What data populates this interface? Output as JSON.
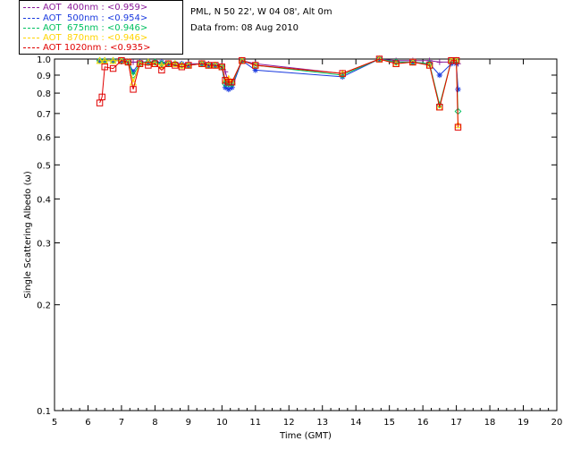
{
  "header": {
    "site": "PML, N 50 22', W 04 08', Alt 0m",
    "date_line": "Data from: 08 Aug 2010"
  },
  "legend": [
    {
      "text": "AOT  400nm : <0.959>",
      "color": "#8a1a9a"
    },
    {
      "text": "AOT  500nm : <0.954>",
      "color": "#1a3adf"
    },
    {
      "text": "AOT  675nm : <0.946>",
      "color": "#00c060"
    },
    {
      "text": "AOT  870nm : <0.946>",
      "color": "#ffd400"
    },
    {
      "text": "AOT 1020nm : <0.935>",
      "color": "#e00000"
    }
  ],
  "chart_data": {
    "type": "scatter",
    "title": "",
    "xlabel": "Time (GMT)",
    "ylabel": "Single Scattering Albedo (ω)",
    "xlim": [
      5,
      20
    ],
    "ylim": [
      0.1,
      1.0
    ],
    "yscale": "log",
    "x_ticks": [
      "5",
      "6",
      "7",
      "8",
      "9",
      "10",
      "11",
      "12",
      "13",
      "14",
      "15",
      "16",
      "17",
      "18",
      "19",
      "20"
    ],
    "y_ticks": [
      {
        "v": 1.0,
        "label": "1.0"
      },
      {
        "v": 0.9,
        "label": "0.9"
      },
      {
        "v": 0.8,
        "label": "0.8"
      },
      {
        "v": 0.7,
        "label": "0.7"
      },
      {
        "v": 0.6,
        "label": "0.6"
      },
      {
        "v": 0.5,
        "label": "0.5"
      },
      {
        "v": 0.4,
        "label": "0.4"
      },
      {
        "v": 0.3,
        "label": "0.3"
      },
      {
        "v": 0.2,
        "label": "0.2"
      },
      {
        "v": 0.1,
        "label": "0.1"
      }
    ],
    "series": [
      {
        "name": "AOT  400nm",
        "color": "#8a1a9a",
        "marker": "plus",
        "x": [
          6.35,
          6.5,
          6.75,
          7.0,
          7.2,
          7.35,
          7.55,
          7.8,
          8.0,
          8.2,
          8.4,
          8.6,
          8.8,
          9.0,
          9.4,
          9.6,
          9.8,
          10.0,
          10.1,
          10.2,
          10.3,
          10.6,
          11.0,
          13.6,
          14.7,
          15.2,
          15.7,
          16.2,
          16.5,
          16.85,
          17.0,
          17.05
        ],
        "y": [
          0.99,
          0.99,
          0.99,
          0.99,
          0.98,
          0.98,
          0.98,
          0.98,
          0.98,
          0.98,
          0.97,
          0.97,
          0.97,
          0.97,
          0.97,
          0.97,
          0.96,
          0.96,
          0.92,
          0.85,
          0.86,
          0.99,
          0.97,
          0.91,
          1.0,
          0.99,
          0.99,
          0.99,
          0.98,
          0.98,
          0.98,
          0.97
        ]
      },
      {
        "name": "AOT  500nm",
        "color": "#1a3adf",
        "marker": "star",
        "x": [
          6.35,
          6.5,
          6.75,
          7.0,
          7.2,
          7.35,
          7.55,
          7.8,
          8.0,
          8.2,
          8.4,
          8.6,
          8.8,
          9.0,
          9.4,
          9.6,
          9.8,
          10.0,
          10.1,
          10.2,
          10.3,
          10.6,
          11.0,
          13.6,
          14.7,
          15.2,
          15.7,
          16.2,
          16.5,
          16.85,
          17.0,
          17.05
        ],
        "y": [
          0.99,
          0.99,
          0.99,
          0.99,
          0.98,
          0.92,
          0.98,
          0.98,
          0.98,
          0.98,
          0.97,
          0.97,
          0.97,
          0.96,
          0.97,
          0.96,
          0.96,
          0.95,
          0.83,
          0.82,
          0.83,
          0.99,
          0.93,
          0.89,
          1.0,
          0.98,
          0.98,
          0.97,
          0.9,
          0.97,
          0.97,
          0.82
        ]
      },
      {
        "name": "AOT  675nm",
        "color": "#00c060",
        "marker": "diamond",
        "x": [
          6.35,
          6.5,
          6.75,
          7.0,
          7.2,
          7.35,
          7.55,
          7.8,
          8.0,
          8.2,
          8.4,
          8.6,
          8.8,
          9.0,
          9.4,
          9.6,
          9.8,
          10.0,
          10.1,
          10.2,
          10.3,
          10.6,
          11.0,
          13.6,
          14.7,
          15.2,
          15.7,
          16.2,
          16.5,
          16.85,
          17.0,
          17.05
        ],
        "y": [
          0.99,
          0.99,
          0.99,
          0.99,
          0.98,
          0.9,
          0.97,
          0.98,
          0.98,
          0.97,
          0.97,
          0.97,
          0.96,
          0.96,
          0.97,
          0.96,
          0.96,
          0.95,
          0.85,
          0.85,
          0.85,
          0.99,
          0.96,
          0.9,
          1.0,
          0.98,
          0.98,
          0.97,
          0.74,
          0.99,
          0.99,
          0.71
        ]
      },
      {
        "name": "AOT  870nm",
        "color": "#ffd400",
        "marker": "triangle",
        "x": [
          6.35,
          6.5,
          6.75,
          7.0,
          7.2,
          7.35,
          7.55,
          7.8,
          8.0,
          8.2,
          8.4,
          8.6,
          8.8,
          9.0,
          9.4,
          9.6,
          9.8,
          10.0,
          10.1,
          10.2,
          10.3,
          10.6,
          11.0,
          13.6,
          14.7,
          15.2,
          15.7,
          16.2,
          16.5,
          16.85,
          17.0,
          17.05
        ],
        "y": [
          0.99,
          0.99,
          0.99,
          0.99,
          0.98,
          0.86,
          0.97,
          0.98,
          0.97,
          0.96,
          0.97,
          0.97,
          0.96,
          0.96,
          0.97,
          0.96,
          0.96,
          0.95,
          0.87,
          0.88,
          0.86,
          0.99,
          0.96,
          0.91,
          1.0,
          0.97,
          0.98,
          0.96,
          0.73,
          0.99,
          0.99,
          0.65
        ]
      },
      {
        "name": "AOT 1020nm",
        "color": "#e00000",
        "marker": "square",
        "x": [
          6.35,
          6.42,
          6.5,
          6.75,
          7.0,
          7.2,
          7.35,
          7.55,
          7.8,
          8.0,
          8.2,
          8.4,
          8.6,
          8.8,
          9.0,
          9.4,
          9.6,
          9.8,
          10.0,
          10.1,
          10.2,
          10.3,
          10.6,
          11.0,
          13.6,
          14.7,
          15.2,
          15.7,
          16.2,
          16.5,
          16.85,
          17.0,
          17.05
        ],
        "y": [
          0.75,
          0.78,
          0.95,
          0.94,
          0.99,
          0.98,
          0.82,
          0.97,
          0.96,
          0.97,
          0.93,
          0.97,
          0.96,
          0.95,
          0.96,
          0.97,
          0.96,
          0.96,
          0.95,
          0.87,
          0.86,
          0.86,
          0.99,
          0.96,
          0.91,
          1.0,
          0.97,
          0.98,
          0.96,
          0.73,
          0.99,
          0.99,
          0.64
        ]
      }
    ]
  }
}
